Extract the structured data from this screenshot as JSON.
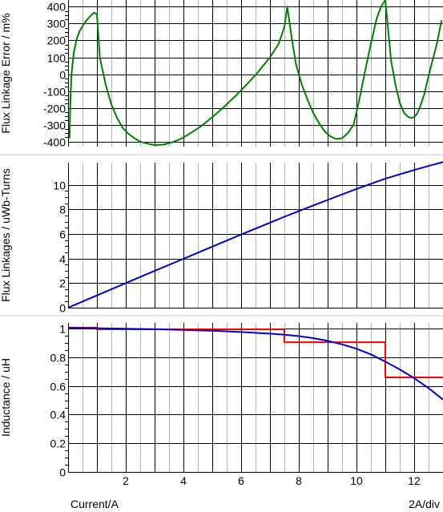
{
  "chart_data": [
    {
      "type": "line",
      "ylabel": "Flux Linkage Error / m%",
      "xlim": [
        0,
        13
      ],
      "ylim": [
        -430,
        440
      ],
      "yticks": [
        -400,
        -300,
        -200,
        -100,
        0,
        100,
        200,
        300,
        400
      ],
      "x_minor_step": 0.5,
      "x_major_step": 2,
      "grid": true,
      "series": [
        {
          "color": "#008000",
          "x": [
            0.05,
            0.08,
            0.12,
            0.2,
            0.3,
            0.4,
            0.5,
            0.6,
            0.7,
            0.8,
            0.9,
            1.0,
            1.1,
            1.3,
            1.5,
            1.7,
            1.9,
            2.1,
            2.3,
            2.5,
            2.7,
            2.9,
            3.1,
            3.3,
            3.6,
            3.9,
            4.2,
            4.6,
            5.0,
            5.4,
            5.8,
            6.2,
            6.6,
            7.0,
            7.3,
            7.5,
            7.6,
            7.75,
            7.9,
            8.1,
            8.3,
            8.5,
            8.7,
            8.9,
            9.1,
            9.3,
            9.5,
            9.7,
            9.9,
            10.1,
            10.3,
            10.5,
            10.7,
            10.85,
            11.0,
            11.1,
            11.2,
            11.35,
            11.5,
            11.65,
            11.8,
            11.9,
            12.0,
            12.1,
            12.2,
            12.35,
            12.5,
            12.65,
            12.8,
            12.95
          ],
          "y": [
            -380,
            -150,
            0,
            130,
            210,
            255,
            285,
            310,
            330,
            350,
            365,
            355,
            100,
            -60,
            -180,
            -260,
            -320,
            -355,
            -380,
            -400,
            -410,
            -418,
            -420,
            -418,
            -405,
            -385,
            -355,
            -310,
            -255,
            -195,
            -130,
            -60,
            15,
            100,
            180,
            280,
            400,
            220,
            60,
            -60,
            -150,
            -230,
            -290,
            -340,
            -370,
            -385,
            -380,
            -350,
            -300,
            -150,
            20,
            180,
            330,
            400,
            440,
            260,
            80,
            -60,
            -170,
            -230,
            -255,
            -260,
            -255,
            -235,
            -195,
            -120,
            -10,
            90,
            190,
            320
          ]
        }
      ]
    },
    {
      "type": "line",
      "ylabel": "Flux Linkages / uWb-Turns",
      "xlim": [
        0,
        13
      ],
      "ylim": [
        0,
        11.8
      ],
      "yticks": [
        0,
        2,
        4,
        6,
        8,
        10
      ],
      "x_minor_step": 0.5,
      "x_major_step": 2,
      "grid": true,
      "series": [
        {
          "color": "#0000cc",
          "x": [
            0,
            1,
            2,
            3,
            4,
            5,
            6,
            7,
            7.5,
            8,
            9,
            10,
            11,
            11.5,
            12,
            12.5,
            13
          ],
          "y": [
            0,
            1.0,
            2.0,
            2.99,
            3.98,
            4.97,
            5.95,
            6.92,
            7.4,
            7.86,
            8.77,
            9.66,
            10.5,
            10.85,
            11.2,
            11.53,
            11.85
          ]
        }
      ]
    },
    {
      "type": "line",
      "ylabel": "Inductance / uH",
      "xlabel": "Current/A",
      "scale_label": "2A/div",
      "xlim": [
        0,
        13
      ],
      "ylim": [
        0,
        1.04
      ],
      "yticks": [
        0,
        0.2,
        0.4,
        0.6,
        0.8,
        1
      ],
      "xticks": [
        2,
        4,
        6,
        8,
        10,
        12
      ],
      "x_minor_step": 0.5,
      "x_major_step": 2,
      "grid": true,
      "series": [
        {
          "color": "#ff0000",
          "step": true,
          "x": [
            0,
            1.0,
            1.0,
            7.5,
            7.5,
            11.0,
            11.0,
            13
          ],
          "y": [
            1.007,
            1.007,
            0.995,
            0.995,
            0.905,
            0.905,
            0.66,
            0.66
          ]
        },
        {
          "color": "#0000cc",
          "x": [
            0,
            1,
            2,
            3,
            4,
            5,
            6,
            7,
            7.5,
            8,
            8.5,
            9,
            9.5,
            10,
            10.5,
            11,
            11.5,
            12,
            12.5,
            13
          ],
          "y": [
            1.005,
            1.003,
            1.0,
            0.996,
            0.991,
            0.985,
            0.976,
            0.965,
            0.958,
            0.948,
            0.934,
            0.915,
            0.89,
            0.86,
            0.82,
            0.77,
            0.715,
            0.655,
            0.585,
            0.505
          ]
        }
      ]
    }
  ]
}
